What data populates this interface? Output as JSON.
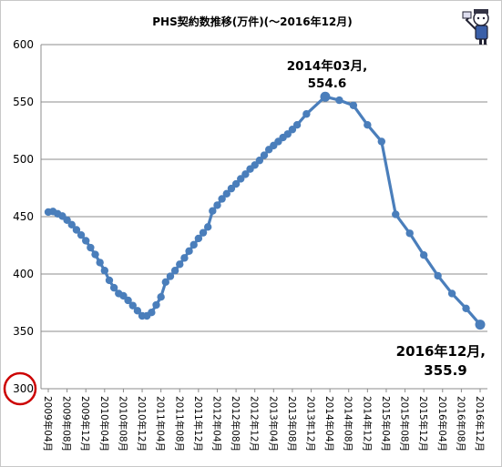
{
  "chart_data": {
    "type": "line",
    "title": "PHS契約数推移(万件)(～2016年12月)",
    "xlabel": "",
    "ylabel": "",
    "ylim": [
      300,
      600
    ],
    "yticks": [
      300,
      350,
      400,
      450,
      500,
      550,
      600
    ],
    "grid": true,
    "legend": "none",
    "x_tick_labels": [
      "2009年04月",
      "2009年08月",
      "2009年12月",
      "2010年04月",
      "2010年08月",
      "2010年12月",
      "2011年04月",
      "2011年08月",
      "2011年12月",
      "2012年04月",
      "2012年08月",
      "2012年12月",
      "2013年04月",
      "2013年08月",
      "2013年12月",
      "2014年04月",
      "2014年08月",
      "2014年12月",
      "2015年04月",
      "2015年08月",
      "2015年12月",
      "2016年04月",
      "2016年08月",
      "2016年12月"
    ],
    "x_month_index_start": 0,
    "series": [
      {
        "color": "#4a7ebb",
        "points": [
          [
            0,
            454.0
          ],
          [
            1,
            454.5
          ],
          [
            2,
            452.5
          ],
          [
            3,
            450.5
          ],
          [
            4,
            447.0
          ],
          [
            5,
            443.0
          ],
          [
            6,
            438.5
          ],
          [
            7,
            434.0
          ],
          [
            8,
            429.0
          ],
          [
            9,
            423.0
          ],
          [
            10,
            417.0
          ],
          [
            11,
            410.0
          ],
          [
            12,
            403.0
          ],
          [
            13,
            394.5
          ],
          [
            14,
            388.0
          ],
          [
            15,
            383.0
          ],
          [
            16,
            381.0
          ],
          [
            17,
            377.0
          ],
          [
            18,
            372.5
          ],
          [
            19,
            368.0
          ],
          [
            20,
            363.5
          ],
          [
            21,
            363.5
          ],
          [
            22,
            366.5
          ],
          [
            23,
            373.0
          ],
          [
            24,
            380.0
          ],
          [
            25,
            393.0
          ],
          [
            26,
            398.0
          ],
          [
            27,
            403.0
          ],
          [
            28,
            408.5
          ],
          [
            29,
            414.0
          ],
          [
            30,
            420.0
          ],
          [
            31,
            425.5
          ],
          [
            32,
            431.0
          ],
          [
            33,
            436.0
          ],
          [
            34,
            441.0
          ],
          [
            35,
            455.0
          ],
          [
            36,
            460.0
          ],
          [
            37,
            465.5
          ],
          [
            38,
            470.0
          ],
          [
            39,
            474.5
          ],
          [
            40,
            478.5
          ],
          [
            41,
            483.0
          ],
          [
            42,
            487.0
          ],
          [
            43,
            491.5
          ],
          [
            44,
            495.0
          ],
          [
            45,
            499.0
          ],
          [
            46,
            503.5
          ],
          [
            47,
            508.5
          ],
          [
            48,
            512.0
          ],
          [
            49,
            515.5
          ],
          [
            50,
            519.0
          ],
          [
            51,
            522.0
          ],
          [
            52,
            526.0
          ],
          [
            53,
            530.0
          ],
          [
            55,
            539.5
          ],
          [
            59,
            554.6
          ],
          [
            62,
            551.5
          ],
          [
            65,
            547.0
          ],
          [
            68,
            530.0
          ],
          [
            71,
            515.5
          ],
          [
            74,
            452.0
          ],
          [
            77,
            435.5
          ],
          [
            80,
            416.5
          ],
          [
            83,
            398.5
          ],
          [
            86,
            383.0
          ],
          [
            89,
            370.0
          ],
          [
            92,
            355.9
          ]
        ]
      }
    ],
    "annotations": [
      {
        "lines": [
          "2014年03月,",
          "554.6"
        ],
        "at": [
          59,
          554.6
        ]
      },
      {
        "lines": [
          "2016年12月,",
          "355.9"
        ],
        "at": [
          92,
          355.9
        ]
      }
    ],
    "highlight": {
      "shape": "circle",
      "color": "#cc0000",
      "at_value": 300
    }
  }
}
